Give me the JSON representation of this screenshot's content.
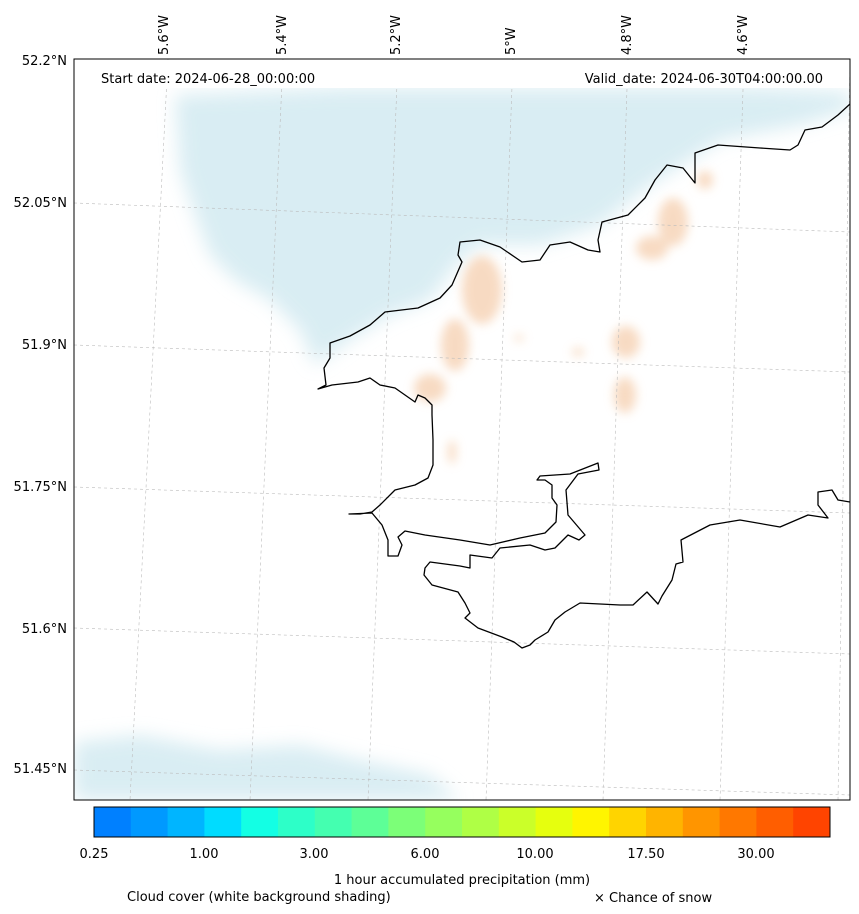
{
  "header": {
    "start_date": "Start date: 2024-06-28_00:00:00",
    "valid_date": "Valid_date: 2024-06-30T04:00:00.00"
  },
  "map": {
    "lon_ticks": [
      "5.6°W",
      "5.4°W",
      "5.2°W",
      "5°W",
      "4.8°W",
      "4.6°W"
    ],
    "lat_ticks": [
      "52.2°N",
      "52.05°N",
      "51.9°N",
      "51.75°N",
      "51.6°N",
      "51.45°N"
    ],
    "colors": {
      "coastline": "#000000",
      "cloud": "#d3eaf1",
      "precip_light": "#f6d2b4",
      "grid": "#bbbbbb"
    }
  },
  "colorbar": {
    "colors": [
      "#0080ff",
      "#0099ff",
      "#00b5ff",
      "#00dcff",
      "#13ffe4",
      "#2dffc8",
      "#44ffb0",
      "#5dff97",
      "#7cff78",
      "#96ff5e",
      "#afff45",
      "#cbff29",
      "#e6ff0e",
      "#fff500",
      "#ffd400",
      "#ffb400",
      "#ff9500",
      "#ff7800",
      "#ff5e00",
      "#ff4400"
    ],
    "tick_labels": [
      "0.25",
      "1.00",
      "3.00",
      "6.00",
      "10.00",
      "17.50",
      "30.00"
    ],
    "label": "1 hour accumulated precipitation (mm)"
  },
  "footer": {
    "cloud_note": "Cloud cover (white background shading)",
    "snow_note": "× Chance of snow"
  }
}
